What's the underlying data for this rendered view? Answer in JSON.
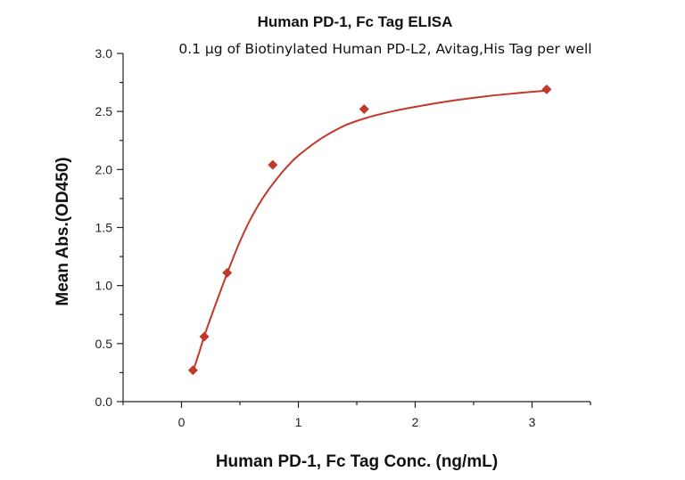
{
  "chart_data": {
    "type": "scatter",
    "title": "Human PD-1, Fc Tag ELISA",
    "subtitle": "0.1 μg of Biotinylated Human PD-L2, Avitag,His Tag per well",
    "xlabel": "Human PD-1, Fc Tag Conc. (ng/mL)",
    "ylabel": "Mean Abs.(OD450)",
    "xlim": [
      -0.5,
      3.5
    ],
    "ylim": [
      0.0,
      3.0
    ],
    "x_ticks": [
      0,
      1,
      2,
      3
    ],
    "x_tick_labels": [
      "0",
      "1",
      "2",
      "3"
    ],
    "y_ticks": [
      0.0,
      0.5,
      1.0,
      1.5,
      2.0,
      2.5,
      3.0
    ],
    "y_tick_labels": [
      "0.0",
      "0.5",
      "1.0",
      "1.5",
      "2.0",
      "2.5",
      "3.0"
    ],
    "grid": false,
    "marker": "diamond",
    "color": "#c0392b",
    "series": [
      {
        "x": [
          0.098,
          0.195,
          0.391,
          0.781,
          1.563,
          3.125
        ],
        "y": [
          0.27,
          0.56,
          1.11,
          2.04,
          2.52,
          2.69
        ]
      }
    ],
    "fit_curve": {
      "type": "4PL",
      "x": [
        0.098,
        0.15,
        0.2,
        0.3,
        0.4,
        0.5,
        0.6,
        0.7,
        0.8,
        0.9,
        1.0,
        1.2,
        1.4,
        1.6,
        1.8,
        2.0,
        2.3,
        2.6,
        2.9,
        3.125
      ],
      "y": [
        0.26,
        0.42,
        0.58,
        0.86,
        1.13,
        1.38,
        1.59,
        1.76,
        1.9,
        2.02,
        2.12,
        2.27,
        2.38,
        2.45,
        2.5,
        2.54,
        2.59,
        2.63,
        2.66,
        2.68
      ]
    }
  }
}
